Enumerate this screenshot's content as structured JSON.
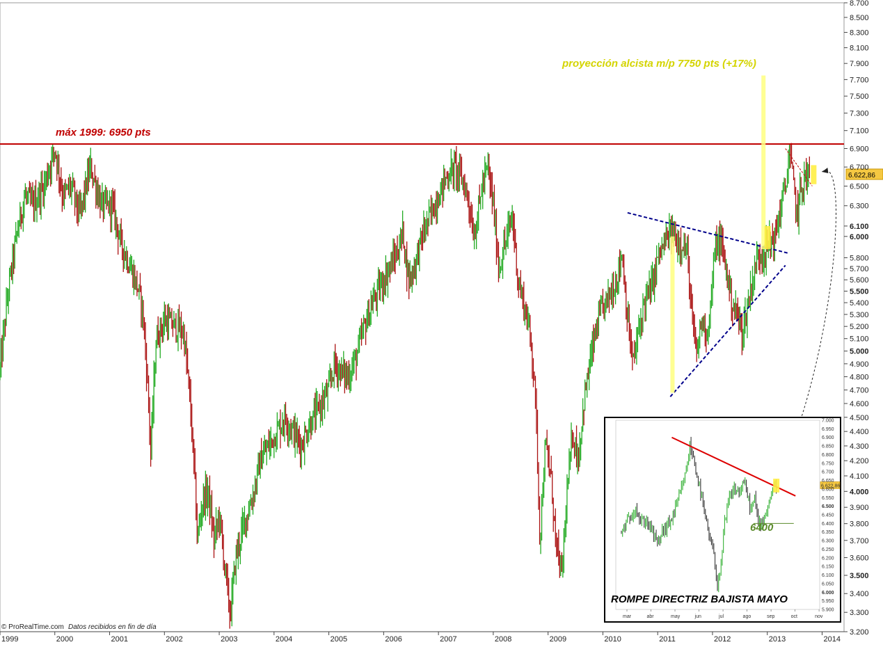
{
  "chart_data": [
    {
      "type": "line",
      "ylim": [
        3200,
        8700
      ],
      "y_scale": "log",
      "y_ticks": [
        "3.200",
        "3.300",
        "3.400",
        "3.500",
        "3.600",
        "3.700",
        "3.800",
        "3.900",
        "4.000",
        "4.100",
        "4.200",
        "4.300",
        "4.400",
        "4.500",
        "4.600",
        "4.700",
        "4.800",
        "4.900",
        "5.000",
        "5.100",
        "5.200",
        "5.300",
        "5.400",
        "5.500",
        "5.600",
        "5.700",
        "5.800",
        "6.000",
        "6.100",
        "6.300",
        "6.500",
        "6.700",
        "6.900",
        "7.100",
        "7.300",
        "7.500",
        "7.700",
        "7.900",
        "8.100",
        "8.300",
        "8.500",
        "8.700"
      ],
      "y_tick_values": [
        3200,
        3300,
        3400,
        3500,
        3600,
        3700,
        3800,
        3900,
        4000,
        4100,
        4200,
        4300,
        4400,
        4500,
        4600,
        4700,
        4800,
        4900,
        5000,
        5100,
        5200,
        5300,
        5400,
        5500,
        5600,
        5700,
        5800,
        6000,
        6100,
        6300,
        6500,
        6700,
        6900,
        7100,
        7300,
        7500,
        7700,
        7900,
        8100,
        8300,
        8500,
        8700
      ],
      "x_ticks": [
        "1999",
        "2000",
        "2001",
        "2002",
        "2003",
        "2004",
        "2005",
        "2006",
        "2007",
        "2008",
        "2009",
        "2010",
        "2011",
        "2012",
        "2013",
        "2014"
      ],
      "x_tick_values": [
        1999,
        2000,
        2001,
        2002,
        2003,
        2004,
        2005,
        2006,
        2007,
        2008,
        2009,
        2010,
        2011,
        2012,
        2013,
        2014
      ],
      "price_path": [
        [
          1999.0,
          4850
        ],
        [
          1999.15,
          5500
        ],
        [
          1999.3,
          6000
        ],
        [
          1999.45,
          6400
        ],
        [
          1999.6,
          6300
        ],
        [
          1999.8,
          6500
        ],
        [
          2000.0,
          6900
        ],
        [
          2000.15,
          6400
        ],
        [
          2000.3,
          6500
        ],
        [
          2000.45,
          6200
        ],
        [
          2000.65,
          6700
        ],
        [
          2000.85,
          6300
        ],
        [
          2001.05,
          6300
        ],
        [
          2001.2,
          5950
        ],
        [
          2001.35,
          5750
        ],
        [
          2001.5,
          5550
        ],
        [
          2001.6,
          5350
        ],
        [
          2001.7,
          4700
        ],
        [
          2001.75,
          4250
        ],
        [
          2001.85,
          5100
        ],
        [
          2002.0,
          5250
        ],
        [
          2002.2,
          5200
        ],
        [
          2002.35,
          5150
        ],
        [
          2002.45,
          4700
        ],
        [
          2002.55,
          4100
        ],
        [
          2002.6,
          3700
        ],
        [
          2002.7,
          3950
        ],
        [
          2002.8,
          4000
        ],
        [
          2002.9,
          3700
        ],
        [
          2003.0,
          3850
        ],
        [
          2003.1,
          3550
        ],
        [
          2003.2,
          3280
        ],
        [
          2003.3,
          3600
        ],
        [
          2003.45,
          3800
        ],
        [
          2003.6,
          3950
        ],
        [
          2003.75,
          4200
        ],
        [
          2003.9,
          4300
        ],
        [
          2004.05,
          4400
        ],
        [
          2004.2,
          4500
        ],
        [
          2004.35,
          4400
        ],
        [
          2004.5,
          4300
        ],
        [
          2004.65,
          4450
        ],
        [
          2004.8,
          4550
        ],
        [
          2005.0,
          4700
        ],
        [
          2005.1,
          4900
        ],
        [
          2005.2,
          4850
        ],
        [
          2005.35,
          4800
        ],
        [
          2005.5,
          4950
        ],
        [
          2005.65,
          5200
        ],
        [
          2005.8,
          5400
        ],
        [
          2005.95,
          5550
        ],
        [
          2006.1,
          5700
        ],
        [
          2006.25,
          5850
        ],
        [
          2006.35,
          6050
        ],
        [
          2006.45,
          5600
        ],
        [
          2006.55,
          5700
        ],
        [
          2006.7,
          6000
        ],
        [
          2006.85,
          6200
        ],
        [
          2007.0,
          6400
        ],
        [
          2007.15,
          6600
        ],
        [
          2007.3,
          6700
        ],
        [
          2007.45,
          6550
        ],
        [
          2007.55,
          6350
        ],
        [
          2007.65,
          6000
        ],
        [
          2007.8,
          6500
        ],
        [
          2007.9,
          6700
        ],
        [
          2008.0,
          6300
        ],
        [
          2008.1,
          5700
        ],
        [
          2008.2,
          5900
        ],
        [
          2008.35,
          6200
        ],
        [
          2008.45,
          5600
        ],
        [
          2008.55,
          5400
        ],
        [
          2008.65,
          5200
        ],
        [
          2008.75,
          4800
        ],
        [
          2008.8,
          4300
        ],
        [
          2008.85,
          3700
        ],
        [
          2008.95,
          4300
        ],
        [
          2009.05,
          4100
        ],
        [
          2009.15,
          3650
        ],
        [
          2009.25,
          3500
        ],
        [
          2009.35,
          4000
        ],
        [
          2009.45,
          4400
        ],
        [
          2009.55,
          4200
        ],
        [
          2009.65,
          4600
        ],
        [
          2009.8,
          5000
        ],
        [
          2009.95,
          5300
        ],
        [
          2010.1,
          5450
        ],
        [
          2010.25,
          5600
        ],
        [
          2010.35,
          5850
        ],
        [
          2010.45,
          5250
        ],
        [
          2010.55,
          4900
        ],
        [
          2010.65,
          5150
        ],
        [
          2010.75,
          5400
        ],
        [
          2010.9,
          5550
        ],
        [
          2011.0,
          5800
        ],
        [
          2011.1,
          5900
        ],
        [
          2011.25,
          6050
        ],
        [
          2011.35,
          5950
        ],
        [
          2011.45,
          5950
        ],
        [
          2011.55,
          5800
        ],
        [
          2011.6,
          5400
        ],
        [
          2011.7,
          4950
        ],
        [
          2011.8,
          5250
        ],
        [
          2011.9,
          5150
        ],
        [
          2011.95,
          5300
        ],
        [
          2012.05,
          5900
        ],
        [
          2012.15,
          5950
        ],
        [
          2012.25,
          5700
        ],
        [
          2012.35,
          5400
        ],
        [
          2012.45,
          5300
        ],
        [
          2012.55,
          5150
        ],
        [
          2012.65,
          5400
        ],
        [
          2012.75,
          5650
        ],
        [
          2012.85,
          5850
        ],
        [
          2012.95,
          5850
        ],
        [
          2013.05,
          5950
        ],
        [
          2013.15,
          6000
        ],
        [
          2013.25,
          6300
        ],
        [
          2013.35,
          6550
        ],
        [
          2013.4,
          6850
        ],
        [
          2013.45,
          6650
        ],
        [
          2013.5,
          6400
        ],
        [
          2013.55,
          6200
        ],
        [
          2013.6,
          6450
        ],
        [
          2013.7,
          6600
        ],
        [
          2013.77,
          6620
        ]
      ],
      "last_value_label": "6.622,86",
      "levels": [
        {
          "value": 6950,
          "label": "máx 1999: 6950 pts",
          "color": "#c00000"
        }
      ],
      "projection": {
        "label": "proyección alcista m/p 7750 pts (+17%)",
        "color": "#d4d400",
        "target": 7750
      },
      "triangle": {
        "upper": [
          [
            2010.45,
            6230
          ],
          [
            2013.4,
            5840
          ]
        ],
        "lower": [
          [
            2011.23,
            4650
          ],
          [
            2013.33,
            5730
          ]
        ],
        "color": "#00008b"
      },
      "measure_bars": [
        {
          "x": 2011.27,
          "from": 4680,
          "to": 6000
        },
        {
          "x": 2012.93,
          "from": 5880,
          "to": 7750
        }
      ],
      "breakout_box": {
        "x": 2013.0,
        "from": 5880,
        "to": 6100
      },
      "downtrend": {
        "points": [
          [
            2013.33,
            6900
          ],
          [
            2013.82,
            6500
          ]
        ],
        "color": "#c00000"
      },
      "colors": {
        "up": "#22aa22",
        "down": "#aa1111"
      },
      "grid": false,
      "footer": {
        "source": "© ProRealTime.com",
        "note": "Datos recibidos en fin de día"
      }
    },
    {
      "type": "line",
      "title": "ROMPE DIRECTRIZ BAJISTA MAYO",
      "ylim": [
        5900,
        7000
      ],
      "y_ticks": [
        "5.900",
        "5.950",
        "6.000",
        "6.050",
        "6.100",
        "6.150",
        "6.200",
        "6.250",
        "6.300",
        "6.350",
        "6.400",
        "6.450",
        "6.500",
        "6.550",
        "6.600",
        "6.650",
        "6.700",
        "6.750",
        "6.800",
        "6.850",
        "6.900",
        "6.950",
        "7.000"
      ],
      "y_tick_values": [
        5900,
        5950,
        6000,
        6050,
        6100,
        6150,
        6200,
        6250,
        6300,
        6350,
        6400,
        6450,
        6500,
        6550,
        6600,
        6650,
        6700,
        6750,
        6800,
        6850,
        6900,
        6950,
        7000
      ],
      "x_ticks": [
        "mar",
        "abr",
        "may",
        "jun",
        "jul",
        "ago",
        "sep",
        "oct",
        "nov"
      ],
      "x_tick_values": [
        0,
        1,
        2,
        3,
        4,
        5,
        6,
        7,
        8
      ],
      "price_path": [
        [
          0,
          6350
        ],
        [
          0.3,
          6420
        ],
        [
          0.6,
          6500
        ],
        [
          0.8,
          6400
        ],
        [
          1.0,
          6420
        ],
        [
          1.2,
          6380
        ],
        [
          1.5,
          6280
        ],
        [
          1.7,
          6350
        ],
        [
          2.0,
          6400
        ],
        [
          2.3,
          6500
        ],
        [
          2.5,
          6600
        ],
        [
          2.7,
          6700
        ],
        [
          2.85,
          6850
        ],
        [
          3.0,
          6780
        ],
        [
          3.2,
          6650
        ],
        [
          3.4,
          6500
        ],
        [
          3.6,
          6350
        ],
        [
          3.8,
          6250
        ],
        [
          4.0,
          6050
        ],
        [
          4.15,
          6150
        ],
        [
          4.3,
          6400
        ],
        [
          4.5,
          6550
        ],
        [
          4.7,
          6600
        ],
        [
          4.9,
          6580
        ],
        [
          5.1,
          6640
        ],
        [
          5.25,
          6560
        ],
        [
          5.4,
          6480
        ],
        [
          5.55,
          6540
        ],
        [
          5.7,
          6400
        ],
        [
          5.9,
          6420
        ],
        [
          6.1,
          6500
        ],
        [
          6.3,
          6600
        ],
        [
          6.45,
          6620
        ]
      ],
      "last_value_label": "6.622,86",
      "downtrend": {
        "points": [
          [
            2.1,
            6900
          ],
          [
            7.25,
            6560
          ]
        ],
        "color": "#dd0000"
      },
      "support": {
        "value": 6400,
        "label": "6400",
        "from": 5.5,
        "to": 6.6
      },
      "breakout_box": {
        "x": 6.35,
        "from": 6580,
        "to": 6660
      }
    }
  ]
}
